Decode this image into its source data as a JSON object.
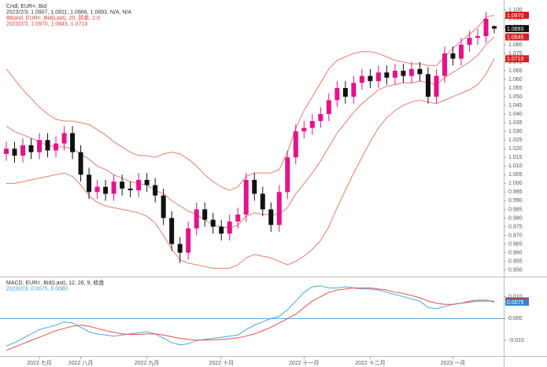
{
  "chart_data": [
    {
      "type": "candlestick",
      "legend": [
        {
          "text": "Cndl, EUR=, Bid",
          "color": "#333333"
        },
        {
          "text": "2023/2/3, 1.0907, 1.0911, 1.0866, 1.0893, N/A, N/A",
          "color": "#333333"
        },
        {
          "text": "BBand, EUR=, Bid(Last), 20, 简单, 2.0",
          "color": "#e0403a"
        },
        {
          "text": "2023/2/3, 1.0970, 1.0845, 1.0719",
          "color": "#e0403a"
        }
      ],
      "categories": [
        null,
        null,
        null,
        null,
        "2022 七月",
        null,
        null,
        null,
        null,
        "2022 八月",
        null,
        null,
        null,
        null,
        null,
        null,
        null,
        "2022 九月",
        null,
        null,
        null,
        null,
        null,
        null,
        null,
        null,
        "2022 十月",
        null,
        null,
        null,
        null,
        null,
        null,
        null,
        null,
        null,
        "2022 十一月",
        null,
        null,
        null,
        null,
        null,
        null,
        null,
        "2022 十二月",
        null,
        null,
        null,
        null,
        null,
        null,
        null,
        null,
        null,
        "2023 一月",
        null,
        null,
        null,
        null,
        null
      ],
      "open": [
        1.017,
        1.02,
        1.016,
        1.022,
        1.018,
        1.025,
        1.019,
        1.023,
        1.029,
        1.018,
        1.005,
        0.995,
        0.998,
        0.994,
        1.001,
        0.997,
        0.996,
        1.002,
        0.999,
        0.993,
        0.98,
        0.965,
        0.96,
        0.974,
        0.985,
        0.979,
        0.975,
        0.971,
        0.978,
        0.982,
        1.002,
        0.994,
        0.985,
        0.976,
        0.995,
        1.015,
        1.03,
        1.032,
        1.036,
        1.04,
        1.048,
        1.055,
        1.05,
        1.058,
        1.062,
        1.059,
        1.064,
        1.061,
        1.065,
        1.062,
        1.066,
        1.063,
        1.05,
        1.062,
        1.075,
        1.072,
        1.08,
        1.084,
        1.085,
        1.0907
      ],
      "high": [
        1.024,
        1.024,
        1.026,
        1.026,
        1.029,
        1.029,
        1.027,
        1.033,
        1.033,
        1.022,
        1.009,
        1.002,
        1.002,
        1.005,
        1.005,
        1.001,
        1.006,
        1.006,
        1.003,
        0.997,
        0.984,
        0.969,
        0.978,
        0.989,
        0.989,
        0.983,
        0.979,
        0.982,
        0.986,
        1.006,
        1.006,
        0.998,
        0.989,
        0.999,
        1.019,
        1.034,
        1.036,
        1.04,
        1.044,
        1.052,
        1.059,
        1.059,
        1.062,
        1.066,
        1.066,
        1.068,
        1.068,
        1.069,
        1.069,
        1.07,
        1.07,
        1.067,
        1.066,
        1.079,
        1.079,
        1.084,
        1.088,
        1.089,
        1.099,
        1.0911
      ],
      "low": [
        1.013,
        1.012,
        1.012,
        1.014,
        1.014,
        1.015,
        1.015,
        1.019,
        1.014,
        1.001,
        0.991,
        0.991,
        0.99,
        0.99,
        0.993,
        0.992,
        0.992,
        0.995,
        0.989,
        0.976,
        0.961,
        0.954,
        0.956,
        0.97,
        0.975,
        0.971,
        0.967,
        0.967,
        0.974,
        0.978,
        0.99,
        0.981,
        0.972,
        0.972,
        0.991,
        1.011,
        1.026,
        1.028,
        1.032,
        1.036,
        1.044,
        1.046,
        1.046,
        1.054,
        1.055,
        1.055,
        1.057,
        1.057,
        1.058,
        1.058,
        1.059,
        1.046,
        1.046,
        1.058,
        1.068,
        1.068,
        1.076,
        1.08,
        1.081,
        1.0866
      ],
      "close": [
        1.02,
        1.016,
        1.022,
        1.018,
        1.025,
        1.019,
        1.023,
        1.029,
        1.018,
        1.005,
        0.995,
        0.998,
        0.994,
        1.001,
        0.997,
        0.996,
        1.002,
        0.999,
        0.993,
        0.98,
        0.965,
        0.96,
        0.974,
        0.985,
        0.979,
        0.975,
        0.971,
        0.978,
        0.982,
        1.002,
        0.994,
        0.985,
        0.976,
        0.995,
        1.015,
        1.03,
        1.032,
        1.036,
        1.04,
        1.048,
        1.055,
        1.05,
        1.058,
        1.062,
        1.059,
        1.064,
        1.061,
        1.065,
        1.062,
        1.066,
        1.063,
        1.05,
        1.062,
        1.075,
        1.072,
        1.08,
        1.084,
        1.085,
        1.095,
        1.0893
      ],
      "up_color": "#e8108c",
      "down_color": "#111111",
      "bands": {
        "color": "#f07a68",
        "upper": [
          1.066,
          1.06,
          1.054,
          1.049,
          1.044,
          1.04,
          1.037,
          1.036,
          1.036,
          1.035,
          1.034,
          1.031,
          1.028,
          1.024,
          1.021,
          1.018,
          1.016,
          1.016,
          1.015,
          1.017,
          1.018,
          1.017,
          1.014,
          1.01,
          1.005,
          1.001,
          0.998,
          0.996,
          0.998,
          1.004,
          1.006,
          1.006,
          1.006,
          1.008,
          1.018,
          1.032,
          1.042,
          1.05,
          1.058,
          1.066,
          1.071,
          1.073,
          1.075,
          1.076,
          1.076,
          1.075,
          1.073,
          1.071,
          1.07,
          1.069,
          1.069,
          1.068,
          1.068,
          1.073,
          1.078,
          1.082,
          1.086,
          1.09,
          1.096,
          1.097
        ],
        "middle": [
          1.033,
          1.03,
          1.028,
          1.026,
          1.024,
          1.022,
          1.021,
          1.021,
          1.02,
          1.017,
          1.014,
          1.01,
          1.008,
          1.005,
          1.003,
          1.001,
          1.0,
          0.999,
          0.996,
          0.994,
          0.99,
          0.987,
          0.984,
          0.982,
          0.979,
          0.976,
          0.975,
          0.974,
          0.976,
          0.981,
          0.983,
          0.982,
          0.982,
          0.982,
          0.986,
          0.994,
          1.0,
          1.006,
          1.013,
          1.021,
          1.029,
          1.035,
          1.041,
          1.046,
          1.05,
          1.054,
          1.056,
          1.057,
          1.058,
          1.058,
          1.059,
          1.058,
          1.057,
          1.061,
          1.064,
          1.067,
          1.07,
          1.074,
          1.08,
          1.0845
        ],
        "lower": [
          1.0,
          1.0,
          1.001,
          1.002,
          1.003,
          1.004,
          1.005,
          1.006,
          1.004,
          0.999,
          0.993,
          0.989,
          0.987,
          0.986,
          0.985,
          0.984,
          0.983,
          0.981,
          0.977,
          0.97,
          0.962,
          0.956,
          0.954,
          0.953,
          0.952,
          0.951,
          0.951,
          0.951,
          0.953,
          0.957,
          0.959,
          0.958,
          0.957,
          0.955,
          0.953,
          0.955,
          0.958,
          0.962,
          0.967,
          0.975,
          0.986,
          0.996,
          1.006,
          1.015,
          1.024,
          1.032,
          1.038,
          1.042,
          1.045,
          1.047,
          1.048,
          1.047,
          1.046,
          1.048,
          1.05,
          1.052,
          1.054,
          1.057,
          1.063,
          1.0719
        ]
      },
      "price_tags": [
        {
          "value": 1.097,
          "label": "1.0970",
          "color": "#d81e1e"
        },
        {
          "value": 1.0893,
          "label": "1.0893",
          "color": "#111111"
        },
        {
          "value": 1.0845,
          "label": "1.0845",
          "color": "#d81e1e"
        },
        {
          "value": 1.0719,
          "label": "1.0719",
          "color": "#d81e1e"
        }
      ],
      "ylim": [
        0.948,
        1.104
      ],
      "yticks": [
        {
          "value": 0.95,
          "label": "0.950"
        },
        {
          "value": 0.955,
          "label": "0.955"
        },
        {
          "value": 0.96,
          "label": "0.960"
        },
        {
          "value": 0.965,
          "label": "0.965"
        },
        {
          "value": 0.97,
          "label": "0.970"
        },
        {
          "value": 0.975,
          "label": "0.975"
        },
        {
          "value": 0.98,
          "label": "0.980"
        },
        {
          "value": 0.985,
          "label": "0.985"
        },
        {
          "value": 0.99,
          "label": "0.990"
        },
        {
          "value": 0.995,
          "label": "0.995"
        },
        {
          "value": 1.0,
          "label": "1.000"
        },
        {
          "value": 1.005,
          "label": "1.005"
        },
        {
          "value": 1.01,
          "label": "1.010"
        },
        {
          "value": 1.015,
          "label": "1.015"
        },
        {
          "value": 1.02,
          "label": "1.020"
        },
        {
          "value": 1.025,
          "label": "1.025"
        },
        {
          "value": 1.03,
          "label": "1.030"
        },
        {
          "value": 1.035,
          "label": "1.035"
        },
        {
          "value": 1.04,
          "label": "1.040"
        },
        {
          "value": 1.045,
          "label": "1.045"
        },
        {
          "value": 1.05,
          "label": "1.050"
        },
        {
          "value": 1.055,
          "label": "1.055"
        },
        {
          "value": 1.06,
          "label": "1.060"
        },
        {
          "value": 1.065,
          "label": "1.065"
        },
        {
          "value": 1.07,
          "label": "1.070"
        },
        {
          "value": 1.075,
          "label": "1.075"
        },
        {
          "value": 1.08,
          "label": "1.080"
        },
        {
          "value": 1.085,
          "label": "1.085"
        },
        {
          "value": 1.09,
          "label": "1.090"
        },
        {
          "value": 1.095,
          "label": "1.095"
        },
        {
          "value": 1.1,
          "label": "1.100"
        }
      ],
      "grid": false
    },
    {
      "type": "line",
      "legend": [
        {
          "text": "MACD, EUR=, Bid(Last), 12, 26, 9, 收盘",
          "color": "#333333"
        },
        {
          "text": "2023/2/3, 0.0075, 0.0080",
          "color": "#3a9ad9"
        }
      ],
      "series": [
        {
          "color": "#45a8e8",
          "values": [
            -0.0125,
            -0.011,
            -0.009,
            -0.007,
            -0.005,
            -0.004,
            -0.003,
            -0.0015,
            -0.002,
            -0.004,
            -0.006,
            -0.007,
            -0.0075,
            -0.008,
            -0.0075,
            -0.007,
            -0.0065,
            -0.006,
            -0.007,
            -0.009,
            -0.011,
            -0.012,
            -0.0115,
            -0.01,
            -0.0095,
            -0.009,
            -0.0085,
            -0.008,
            -0.0075,
            -0.005,
            -0.003,
            -0.0015,
            0.0,
            0.001,
            0.004,
            0.008,
            0.012,
            0.0145,
            0.015,
            0.014,
            0.014,
            0.0145,
            0.014,
            0.0135,
            0.0135,
            0.013,
            0.012,
            0.011,
            0.01,
            0.009,
            0.008,
            0.005,
            0.0045,
            0.0055,
            0.0065,
            0.007,
            0.008,
            0.0085,
            0.0085,
            0.0075
          ]
        },
        {
          "color": "#e8504a",
          "values": [
            -0.0145,
            -0.013,
            -0.0115,
            -0.01,
            -0.0085,
            -0.007,
            -0.0055,
            -0.0045,
            -0.0035,
            -0.003,
            -0.0035,
            -0.0045,
            -0.0055,
            -0.0063,
            -0.007,
            -0.0072,
            -0.0072,
            -0.007,
            -0.007,
            -0.0075,
            -0.0083,
            -0.009,
            -0.0095,
            -0.0098,
            -0.0098,
            -0.0097,
            -0.0095,
            -0.0092,
            -0.0088,
            -0.008,
            -0.007,
            -0.0055,
            -0.004,
            -0.002,
            0.0,
            0.002,
            0.005,
            0.008,
            0.01,
            0.012,
            0.013,
            0.0135,
            0.014,
            0.014,
            0.014,
            0.0135,
            0.013,
            0.012,
            0.0115,
            0.0105,
            0.0095,
            0.008,
            0.007,
            0.0065,
            0.0065,
            0.007,
            0.0075,
            0.008,
            0.008,
            0.008
          ]
        }
      ],
      "hline": {
        "value": 0,
        "color": "#4aa3df"
      },
      "price_tags": [
        {
          "value": 0.008,
          "label": "0.0080",
          "color": "#d81e1e"
        },
        {
          "value": 0.0075,
          "label": "0.0075",
          "color": "#2e86d0"
        }
      ],
      "ylim": [
        -0.016,
        0.017
      ],
      "yticks": [
        {
          "value": -0.01,
          "label": "-0.010"
        },
        {
          "value": 0,
          "label": "0.000"
        },
        {
          "value": 0.01,
          "label": "0.010"
        }
      ],
      "grid": false
    }
  ]
}
